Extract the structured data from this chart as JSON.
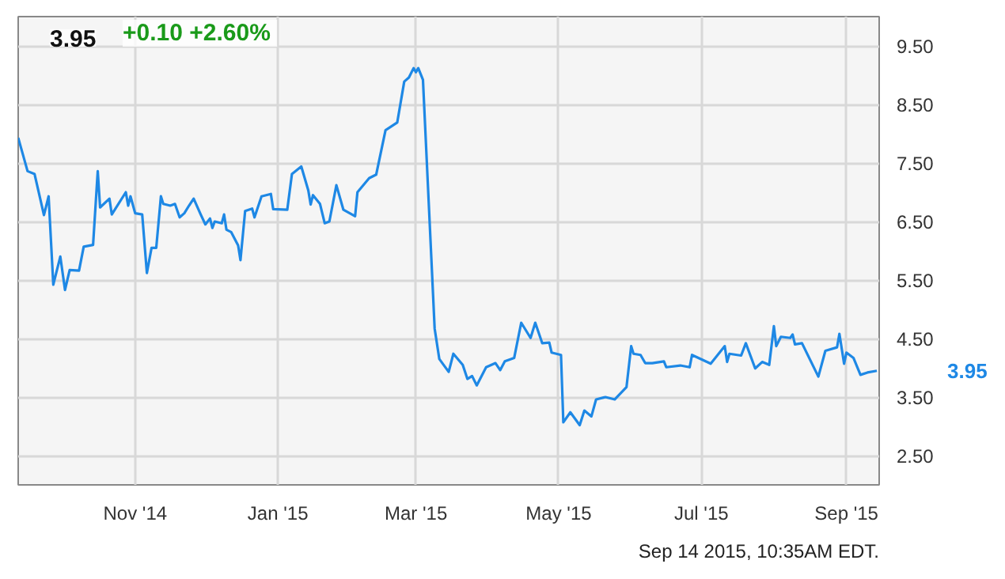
{
  "chart_data": {
    "type": "line",
    "title": "3.95",
    "subtitle": "+0.10  +2.60%",
    "x": [
      "2014-09-12",
      "2014-09-16",
      "2014-09-19",
      "2014-09-23",
      "2014-09-25",
      "2014-09-27",
      "2014-09-30",
      "2014-10-02",
      "2014-10-04",
      "2014-10-08",
      "2014-10-10",
      "2014-10-14",
      "2014-10-16",
      "2014-10-17",
      "2014-10-21",
      "2014-10-22",
      "2014-10-28",
      "2014-10-29",
      "2014-10-30",
      "2014-11-01",
      "2014-11-04",
      "2014-11-06",
      "2014-11-08",
      "2014-11-10",
      "2014-11-12",
      "2014-11-13",
      "2014-11-16",
      "2014-11-18",
      "2014-11-20",
      "2014-11-22",
      "2014-11-24",
      "2014-11-26",
      "2014-11-29",
      "2014-12-01",
      "2014-12-03",
      "2014-12-04",
      "2014-12-05",
      "2014-12-08",
      "2014-12-09",
      "2014-12-10",
      "2014-12-12",
      "2014-12-15",
      "2014-12-16",
      "2014-12-18",
      "2014-12-21",
      "2014-12-22",
      "2014-12-25",
      "2014-12-29",
      "2014-12-30",
      "2015-01-05",
      "2015-01-07",
      "2015-01-11",
      "2015-01-14",
      "2015-01-15",
      "2015-01-16",
      "2015-01-19",
      "2015-01-21",
      "2015-01-23",
      "2015-01-26",
      "2015-01-29",
      "2015-02-03",
      "2015-02-04",
      "2015-02-09",
      "2015-02-12",
      "2015-02-16",
      "2015-02-21",
      "2015-02-24",
      "2015-02-26",
      "2015-02-28",
      "2015-03-01",
      "2015-03-02",
      "2015-03-04",
      "2015-03-09",
      "2015-03-11",
      "2015-03-15",
      "2015-03-17",
      "2015-03-21",
      "2015-03-23",
      "2015-03-25",
      "2015-03-27",
      "2015-03-31",
      "2015-04-04",
      "2015-04-06",
      "2015-04-08",
      "2015-04-12",
      "2015-04-15",
      "2015-04-19",
      "2015-04-21",
      "2015-04-24",
      "2015-04-27",
      "2015-04-28",
      "2015-05-02",
      "2015-05-03",
      "2015-05-06",
      "2015-05-10",
      "2015-05-12",
      "2015-05-15",
      "2015-05-17",
      "2015-05-21",
      "2015-05-25",
      "2015-05-30",
      "2015-06-01",
      "2015-06-02",
      "2015-06-05",
      "2015-06-07",
      "2015-06-10",
      "2015-06-15",
      "2015-06-16",
      "2015-06-22",
      "2015-06-26",
      "2015-06-27",
      "2015-07-05",
      "2015-07-11",
      "2015-07-12",
      "2015-07-13",
      "2015-07-18",
      "2015-07-20",
      "2015-07-24",
      "2015-07-27",
      "2015-07-30",
      "2015-08-01",
      "2015-08-02",
      "2015-08-04",
      "2015-08-08",
      "2015-08-09",
      "2015-08-10",
      "2015-08-13",
      "2015-08-20",
      "2015-08-23",
      "2015-08-28",
      "2015-08-29",
      "2015-08-31",
      "2015-09-01",
      "2015-09-04",
      "2015-09-07",
      "2015-09-10",
      "2015-09-14"
    ],
    "series": [
      {
        "color": "#1e88e5",
        "values": [
          7.93,
          7.36,
          7.31,
          6.61,
          6.93,
          5.42,
          5.9,
          5.33,
          5.67,
          5.66,
          6.07,
          6.1,
          7.36,
          6.74,
          6.89,
          6.62,
          7.0,
          6.77,
          6.93,
          6.64,
          6.62,
          5.62,
          6.05,
          6.05,
          6.93,
          6.8,
          6.77,
          6.8,
          6.57,
          6.64,
          6.77,
          6.89,
          6.62,
          6.45,
          6.55,
          6.39,
          6.5,
          6.47,
          6.62,
          6.36,
          6.32,
          6.09,
          5.84,
          6.68,
          6.72,
          6.57,
          6.93,
          6.97,
          6.71,
          6.7,
          7.31,
          7.44,
          7.03,
          6.79,
          6.95,
          6.8,
          6.47,
          6.5,
          7.12,
          6.7,
          6.59,
          7.0,
          7.24,
          7.3,
          8.06,
          8.19,
          8.89,
          8.96,
          9.12,
          9.05,
          9.12,
          8.92,
          4.67,
          4.15,
          3.93,
          4.24,
          4.05,
          3.81,
          3.86,
          3.7,
          4.01,
          4.08,
          3.96,
          4.11,
          4.17,
          4.77,
          4.51,
          4.77,
          4.42,
          4.43,
          4.26,
          4.22,
          3.07,
          3.24,
          3.02,
          3.27,
          3.17,
          3.46,
          3.5,
          3.46,
          3.67,
          4.37,
          4.24,
          4.22,
          4.08,
          4.08,
          4.11,
          4.01,
          4.04,
          4.01,
          4.22,
          4.07,
          4.37,
          4.1,
          4.24,
          4.21,
          4.42,
          3.99,
          4.1,
          4.05,
          4.71,
          4.37,
          4.53,
          4.51,
          4.57,
          4.4,
          4.42,
          3.85,
          4.29,
          4.35,
          4.58,
          4.07,
          4.26,
          4.17,
          3.88,
          3.92,
          3.95
        ]
      }
    ],
    "xlim": [
      "2014-09-12",
      "2015-09-15"
    ],
    "xticks": [
      {
        "value": "2014-11-01",
        "label": "Nov '14"
      },
      {
        "value": "2015-01-01",
        "label": "Jan '15"
      },
      {
        "value": "2015-03-01",
        "label": "Mar '15"
      },
      {
        "value": "2015-05-01",
        "label": "May '15"
      },
      {
        "value": "2015-07-01",
        "label": "Jul '15"
      },
      {
        "value": "2015-09-01",
        "label": "Sep '15"
      }
    ],
    "ylim": [
      2.0,
      10.0
    ],
    "yticks": [
      {
        "value": 2.5,
        "label": "2.50"
      },
      {
        "value": 3.5,
        "label": "3.50"
      },
      {
        "value": 4.5,
        "label": "4.50"
      },
      {
        "value": 5.5,
        "label": "5.50"
      },
      {
        "value": 6.5,
        "label": "6.50"
      },
      {
        "value": 7.5,
        "label": "7.50"
      },
      {
        "value": 8.5,
        "label": "8.50"
      },
      {
        "value": 9.5,
        "label": "9.50"
      }
    ],
    "grid": true,
    "marker": "none",
    "line_style": "solid",
    "annotations": [
      "3.95",
      "Sep 14 2015, 10:35AM EDT."
    ]
  }
}
